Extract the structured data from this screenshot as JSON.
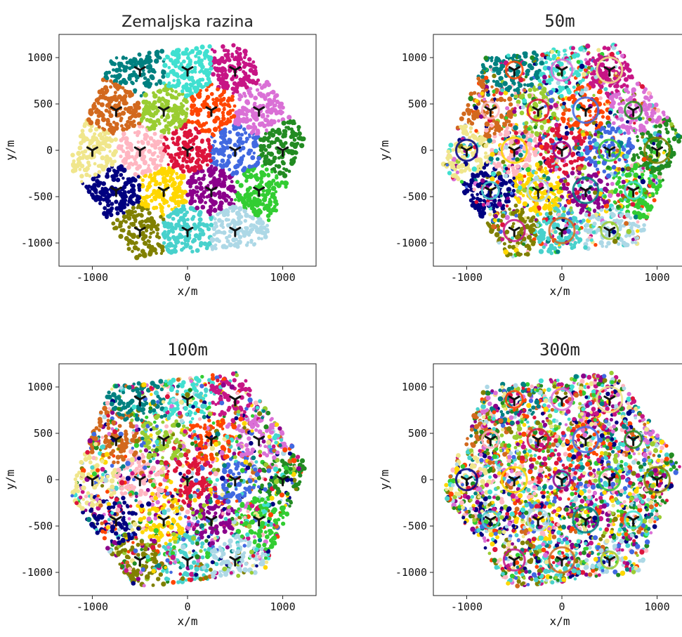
{
  "chart_data": [
    {
      "type": "scatter",
      "title": "Zemaljska razina",
      "xlabel": "x/m",
      "ylabel": "y/m",
      "xlim": [
        -1350,
        1350
      ],
      "ylim": [
        -1250,
        1250
      ],
      "xticks": [
        -1000,
        0,
        1000
      ],
      "yticks": [
        1000,
        500,
        0,
        -500,
        -1000
      ],
      "xtick_labels": [
        "-1000",
        "0",
        "1000"
      ],
      "ytick_labels": [
        "1000",
        "500",
        "0",
        "-500",
        "-1000"
      ],
      "legend": "none",
      "grid": false,
      "layout": "cells",
      "mix": 0.0
    },
    {
      "type": "scatter",
      "title": "50m",
      "xlabel": "x/m",
      "ylabel": "y/m",
      "xlim": [
        -1350,
        1350
      ],
      "ylim": [
        -1250,
        1250
      ],
      "xticks": [
        -1000,
        0,
        1000
      ],
      "yticks": [
        1000,
        500,
        0,
        -500,
        -1000
      ],
      "xtick_labels": [
        "-1000",
        "0",
        "1000"
      ],
      "ytick_labels": [
        "1000",
        "500",
        "0",
        "-500",
        "-1000"
      ],
      "legend": "none",
      "grid": false,
      "layout": "rings",
      "mix": 0.35
    },
    {
      "type": "scatter",
      "title": "100m",
      "xlabel": "x/m",
      "ylabel": "y/m",
      "xlim": [
        -1350,
        1350
      ],
      "ylim": [
        -1250,
        1250
      ],
      "xticks": [
        -1000,
        0,
        1000
      ],
      "yticks": [
        1000,
        500,
        0,
        -500,
        -1000
      ],
      "xtick_labels": [
        "-1000",
        "0",
        "1000"
      ],
      "ytick_labels": [
        "1000",
        "500",
        "0",
        "-500",
        "-1000"
      ],
      "legend": "none",
      "grid": false,
      "layout": "blobs",
      "mix": 0.45
    },
    {
      "type": "scatter",
      "title": "300m",
      "xlabel": "x/m",
      "ylabel": "y/m",
      "xlim": [
        -1350,
        1350
      ],
      "ylim": [
        -1250,
        1250
      ],
      "xticks": [
        -1000,
        0,
        1000
      ],
      "yticks": [
        1000,
        500,
        0,
        -500,
        -1000
      ],
      "xtick_labels": [
        "-1000",
        "0",
        "1000"
      ],
      "ytick_labels": [
        "1000",
        "500",
        "0",
        "-500",
        "-1000"
      ],
      "legend": "none",
      "grid": false,
      "layout": "rings",
      "mix": 0.8
    }
  ],
  "base_stations": [
    [
      -500,
      866
    ],
    [
      0,
      866
    ],
    [
      500,
      866
    ],
    [
      -750,
      433
    ],
    [
      -250,
      433
    ],
    [
      250,
      433
    ],
    [
      750,
      433
    ],
    [
      -1000,
      0
    ],
    [
      -500,
      0
    ],
    [
      0,
      0
    ],
    [
      500,
      0
    ],
    [
      1000,
      0
    ],
    [
      -750,
      -433
    ],
    [
      -250,
      -433
    ],
    [
      250,
      -433
    ],
    [
      750,
      -433
    ],
    [
      -500,
      -866
    ],
    [
      0,
      -866
    ],
    [
      500,
      -866
    ]
  ],
  "base_station_marker": "tri-down",
  "area_hexagon": [
    [
      1250,
      150
    ],
    [
      550,
      1160
    ],
    [
      -800,
      1010
    ],
    [
      -1250,
      -150
    ],
    [
      -550,
      -1160
    ],
    [
      800,
      -1010
    ]
  ],
  "cell_colors": [
    "#008080",
    "#40e0d0",
    "#c71585",
    "#d2691e",
    "#9acd32",
    "#ff4500",
    "#da70d6",
    "#f0e68c",
    "#ffb6c1",
    "#dc143c",
    "#4169e1",
    "#228b22",
    "#000080",
    "#ffd700",
    "#8b008b",
    "#32cd32",
    "#808000",
    "#48d1cc",
    "#add8e6"
  ]
}
